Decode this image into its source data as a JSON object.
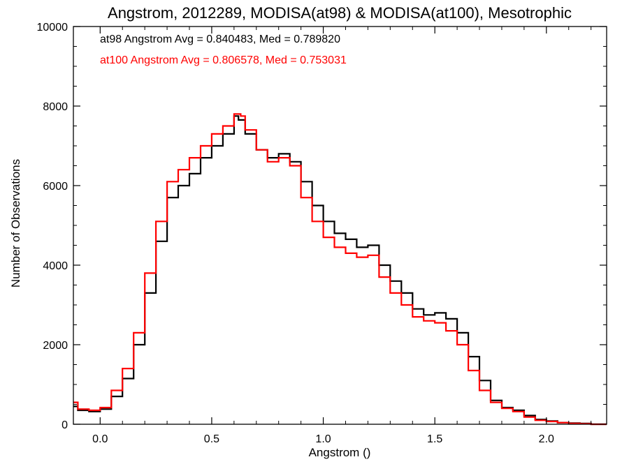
{
  "chart_data": {
    "type": "line",
    "step": true,
    "title": "Angstrom, 2012289, MODISA(at98) & MODISA(at100), Mesotrophic",
    "xlabel": "Angstrom ()",
    "ylabel": "Number of Observations",
    "xlim": [
      -0.12,
      2.27
    ],
    "ylim": [
      0,
      10000
    ],
    "xticks": [
      0.0,
      0.5,
      1.0,
      1.5,
      2.0
    ],
    "xtick_labels": [
      "0.0",
      "0.5",
      "1.0",
      "1.5",
      "2.0"
    ],
    "yticks": [
      0,
      2000,
      4000,
      6000,
      8000,
      10000
    ],
    "ytick_labels": [
      "0",
      "2000",
      "4000",
      "6000",
      "8000",
      "10000"
    ],
    "grid": false,
    "legend": "none",
    "annotations": [
      {
        "text": "at98 Angstrom Avg = 0.840483, Med = 0.789820",
        "color": "#000000"
      },
      {
        "text": "at100 Angstrom Avg = 0.806578, Med = 0.753031",
        "color": "#ff0000"
      }
    ],
    "series": [
      {
        "color": "#000000",
        "x": [
          -0.12,
          -0.1,
          -0.05,
          0.0,
          0.05,
          0.1,
          0.15,
          0.2,
          0.25,
          0.3,
          0.35,
          0.4,
          0.45,
          0.5,
          0.55,
          0.6,
          0.62,
          0.65,
          0.7,
          0.75,
          0.8,
          0.85,
          0.9,
          0.95,
          1.0,
          1.05,
          1.1,
          1.15,
          1.2,
          1.25,
          1.3,
          1.35,
          1.4,
          1.45,
          1.5,
          1.55,
          1.6,
          1.65,
          1.7,
          1.75,
          1.8,
          1.85,
          1.9,
          1.95,
          2.0,
          2.05,
          2.1,
          2.15,
          2.2,
          2.27
        ],
        "y": [
          450,
          350,
          320,
          380,
          700,
          1150,
          2000,
          3300,
          4600,
          5700,
          6000,
          6300,
          6700,
          7000,
          7300,
          7750,
          7650,
          7300,
          6900,
          6700,
          6800,
          6600,
          6100,
          5500,
          5100,
          4800,
          4650,
          4450,
          4500,
          4000,
          3600,
          3300,
          2900,
          2750,
          2800,
          2650,
          2300,
          1700,
          1100,
          600,
          420,
          350,
          220,
          120,
          80,
          40,
          30,
          20,
          0,
          0
        ]
      },
      {
        "color": "#ff0000",
        "x": [
          -0.12,
          -0.1,
          -0.05,
          0.0,
          0.05,
          0.1,
          0.15,
          0.2,
          0.25,
          0.3,
          0.35,
          0.4,
          0.45,
          0.5,
          0.55,
          0.6,
          0.63,
          0.65,
          0.7,
          0.75,
          0.8,
          0.85,
          0.9,
          0.95,
          1.0,
          1.05,
          1.1,
          1.15,
          1.2,
          1.25,
          1.3,
          1.35,
          1.4,
          1.45,
          1.5,
          1.55,
          1.6,
          1.65,
          1.7,
          1.75,
          1.8,
          1.85,
          1.9,
          1.95,
          2.0,
          2.05,
          2.1,
          2.15,
          2.2,
          2.27
        ],
        "y": [
          550,
          380,
          350,
          420,
          850,
          1400,
          2300,
          3800,
          5100,
          6100,
          6400,
          6700,
          7000,
          7300,
          7500,
          7800,
          7750,
          7400,
          6900,
          6600,
          6700,
          6500,
          5700,
          5100,
          4700,
          4450,
          4300,
          4200,
          4250,
          3700,
          3300,
          3000,
          2700,
          2600,
          2550,
          2350,
          2000,
          1350,
          850,
          550,
          400,
          320,
          180,
          100,
          70,
          40,
          20,
          10,
          0,
          0
        ]
      }
    ]
  }
}
